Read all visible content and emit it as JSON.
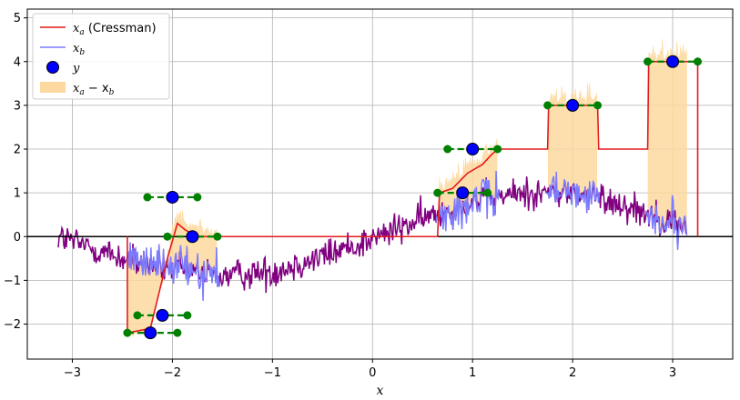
{
  "chart_data": {
    "type": "line",
    "title": "",
    "xlabel": "x",
    "ylabel": "",
    "xlim": [
      -3.45,
      3.6
    ],
    "ylim": [
      -2.8,
      5.2
    ],
    "grid": true,
    "legend_position": "top-left",
    "x_ticks": [
      -3,
      -2,
      -1,
      0,
      1,
      2,
      3
    ],
    "y_ticks": [
      -2,
      -1,
      0,
      1,
      2,
      3,
      4,
      5
    ],
    "x_tick_labels": [
      "−3",
      "−2",
      "−1",
      "0",
      "1",
      "2",
      "3"
    ],
    "y_tick_labels": [
      "−2",
      "−1",
      "0",
      "1",
      "2",
      "3",
      "4",
      "5"
    ],
    "legend": [
      {
        "label_main": "x",
        "label_sub": "a",
        "label_suffix": " (Cressman)",
        "color": "#e41a1c",
        "kind": "line"
      },
      {
        "label_main": "x",
        "label_sub": "b",
        "label_suffix": "",
        "color": "#7b7bff",
        "kind": "line"
      },
      {
        "label_main": "y",
        "label_sub": "",
        "label_suffix": "",
        "color": "#0000ff",
        "kind": "marker"
      },
      {
        "label_main": "x",
        "label_sub": "a",
        "label_suffix": " − x",
        "label_sub2": "b",
        "color": "#fdd9a0",
        "kind": "patch"
      }
    ],
    "colors": {
      "truth": "#800080",
      "xa": "#e41a1c",
      "xb": "#7b7bff",
      "obs": "#0000ff",
      "obs_edge": "#000000",
      "range": "#008000",
      "fill": "#fdd9a0",
      "zero_line": "#000000"
    },
    "truth_trend": {
      "x_start": -3.14,
      "x_end": 3.14,
      "anchor_x": [
        -3.14,
        -2.5,
        -2.0,
        -1.5,
        -1.0,
        -0.5,
        0.0,
        0.5,
        1.0,
        1.5,
        2.0,
        2.5,
        3.14
      ],
      "anchor_y": [
        0.0,
        -0.5,
        -0.75,
        -0.9,
        -0.8,
        -0.45,
        -0.05,
        0.4,
        0.8,
        1.0,
        1.0,
        0.75,
        0.2
      ],
      "noise_amplitude": 0.35
    },
    "observations": [
      {
        "x": -2.22,
        "y": -2.2,
        "x_lo": -2.45,
        "x_hi": -1.95
      },
      {
        "x": -2.1,
        "y": -1.8,
        "x_lo": -2.35,
        "x_hi": -1.85
      },
      {
        "x": -2.0,
        "y": 0.9,
        "x_lo": -2.25,
        "x_hi": -1.75
      },
      {
        "x": -1.8,
        "y": 0.0,
        "x_lo": -2.05,
        "x_hi": -1.55
      },
      {
        "x": 0.9,
        "y": 1.0,
        "x_lo": 0.65,
        "x_hi": 1.15
      },
      {
        "x": 1.0,
        "y": 2.0,
        "x_lo": 0.75,
        "x_hi": 1.25
      },
      {
        "x": 2.0,
        "y": 3.0,
        "x_lo": 1.75,
        "x_hi": 2.25
      },
      {
        "x": 3.0,
        "y": 4.0,
        "x_lo": 2.75,
        "x_hi": 3.25
      }
    ],
    "analysis_xa": {
      "x": [
        -2.45,
        -2.45,
        -2.22,
        -2.05,
        -1.95,
        -1.87,
        -1.75,
        -1.55,
        0.65,
        0.67,
        0.8,
        0.95,
        1.1,
        1.18,
        1.25,
        1.75,
        1.76,
        2.25,
        2.26,
        2.75,
        2.76,
        3.25,
        3.25
      ],
      "y": [
        0.0,
        -2.2,
        -2.1,
        -0.5,
        0.3,
        0.15,
        0.0,
        0.0,
        0.0,
        1.0,
        1.1,
        1.45,
        1.65,
        1.85,
        2.0,
        2.0,
        3.0,
        3.0,
        2.0,
        2.0,
        4.0,
        4.0,
        0.0
      ]
    }
  }
}
